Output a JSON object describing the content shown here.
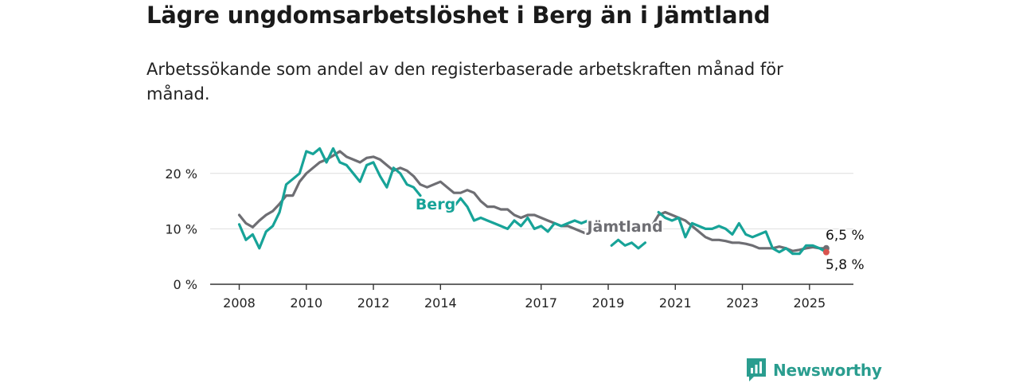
{
  "header": {
    "title": "Lägre ungdomsarbetslöshet i Berg än i Jämtland",
    "subtitle": "Arbetssökande som andel av den registerbaserade arbetskraften månad för månad."
  },
  "brand": {
    "name": "Newsworthy",
    "icon": "newsworthy-logo-icon",
    "color": "#2a9d8f"
  },
  "chart_data": {
    "type": "line",
    "title": "Lägre ungdomsarbetslöshet i Berg än i Jämtland",
    "subtitle": "Arbetssökande som andel av den registerbaserade arbetskraften månad för månad.",
    "xlim": [
      2008,
      2025.55
    ],
    "ylim": [
      0,
      25
    ],
    "yticks": [
      0,
      10,
      20
    ],
    "ytick_labels": [
      "0 %",
      "10 %",
      "20 %"
    ],
    "xticks": [
      2008,
      2010,
      2012,
      2014,
      2017,
      2019,
      2021,
      2023,
      2025
    ],
    "xtick_labels": [
      "2008",
      "2010",
      "2012",
      "2014",
      "2017",
      "2019",
      "2021",
      "2023",
      "2025"
    ],
    "grid": true,
    "series": [
      {
        "name": "Jämtland",
        "color": "#6e6e73",
        "label_x": 2019.5,
        "label_y": 9.5,
        "end_label": "6,5 %",
        "points": [
          [
            2008.0,
            12.5
          ],
          [
            2008.2,
            11.0
          ],
          [
            2008.4,
            10.3
          ],
          [
            2008.6,
            11.5
          ],
          [
            2008.8,
            12.5
          ],
          [
            2009.0,
            13.2
          ],
          [
            2009.2,
            14.5
          ],
          [
            2009.4,
            16.0
          ],
          [
            2009.6,
            16.0
          ],
          [
            2009.8,
            18.5
          ],
          [
            2010.0,
            20.0
          ],
          [
            2010.2,
            21.0
          ],
          [
            2010.4,
            22.0
          ],
          [
            2010.6,
            22.5
          ],
          [
            2010.8,
            23.2
          ],
          [
            2011.0,
            24.0
          ],
          [
            2011.2,
            23.0
          ],
          [
            2011.4,
            22.5
          ],
          [
            2011.6,
            22.0
          ],
          [
            2011.8,
            22.8
          ],
          [
            2012.0,
            23.0
          ],
          [
            2012.2,
            22.5
          ],
          [
            2012.4,
            21.5
          ],
          [
            2012.6,
            20.5
          ],
          [
            2012.8,
            21.0
          ],
          [
            2013.0,
            20.5
          ],
          [
            2013.2,
            19.5
          ],
          [
            2013.4,
            18.0
          ],
          [
            2013.6,
            17.5
          ],
          [
            2013.8,
            18.0
          ],
          [
            2014.0,
            18.5
          ],
          [
            2014.2,
            17.5
          ],
          [
            2014.4,
            16.5
          ],
          [
            2014.6,
            16.5
          ],
          [
            2014.8,
            17.0
          ],
          [
            2015.0,
            16.5
          ],
          [
            2015.2,
            15.0
          ],
          [
            2015.4,
            14.0
          ],
          [
            2015.6,
            14.0
          ],
          [
            2015.8,
            13.5
          ],
          [
            2016.0,
            13.5
          ],
          [
            2016.2,
            12.5
          ],
          [
            2016.4,
            12.0
          ],
          [
            2016.6,
            12.5
          ],
          [
            2016.8,
            12.5
          ],
          [
            2017.0,
            12.0
          ],
          [
            2017.2,
            11.5
          ],
          [
            2017.4,
            11.0
          ],
          [
            2017.6,
            10.5
          ],
          [
            2017.8,
            10.5
          ],
          [
            2018.0,
            10.0
          ],
          [
            2018.2,
            9.5
          ],
          [
            2018.4,
            9.0
          ],
          [
            2020.3,
            10.5
          ],
          [
            2020.5,
            12.5
          ],
          [
            2020.7,
            13.0
          ],
          [
            2020.9,
            12.5
          ],
          [
            2021.1,
            12.0
          ],
          [
            2021.3,
            11.5
          ],
          [
            2021.5,
            10.5
          ],
          [
            2021.7,
            9.5
          ],
          [
            2021.9,
            8.5
          ],
          [
            2022.1,
            8.0
          ],
          [
            2022.3,
            8.0
          ],
          [
            2022.5,
            7.8
          ],
          [
            2022.7,
            7.5
          ],
          [
            2022.9,
            7.5
          ],
          [
            2023.1,
            7.3
          ],
          [
            2023.3,
            7.0
          ],
          [
            2023.5,
            6.5
          ],
          [
            2023.7,
            6.5
          ],
          [
            2023.9,
            6.5
          ],
          [
            2024.1,
            6.8
          ],
          [
            2024.3,
            6.5
          ],
          [
            2024.5,
            6.0
          ],
          [
            2024.7,
            6.2
          ],
          [
            2024.9,
            6.5
          ],
          [
            2025.1,
            6.7
          ],
          [
            2025.3,
            6.5
          ],
          [
            2025.5,
            6.5
          ]
        ]
      },
      {
        "name": "Berg",
        "color": "#17a398",
        "label_x": 2013.85,
        "label_y": 13.5,
        "end_label": "5,8 %",
        "points": [
          [
            2008.0,
            10.8
          ],
          [
            2008.2,
            8.0
          ],
          [
            2008.4,
            9.0
          ],
          [
            2008.6,
            6.5
          ],
          [
            2008.8,
            9.5
          ],
          [
            2009.0,
            10.5
          ],
          [
            2009.2,
            13.0
          ],
          [
            2009.4,
            18.0
          ],
          [
            2009.6,
            19.0
          ],
          [
            2009.8,
            20.0
          ],
          [
            2010.0,
            24.0
          ],
          [
            2010.2,
            23.5
          ],
          [
            2010.4,
            24.5
          ],
          [
            2010.6,
            22.0
          ],
          [
            2010.8,
            24.5
          ],
          [
            2011.0,
            22.0
          ],
          [
            2011.2,
            21.5
          ],
          [
            2011.4,
            20.0
          ],
          [
            2011.6,
            18.5
          ],
          [
            2011.8,
            21.5
          ],
          [
            2012.0,
            22.0
          ],
          [
            2012.2,
            19.5
          ],
          [
            2012.4,
            17.5
          ],
          [
            2012.6,
            21.0
          ],
          [
            2012.8,
            20.0
          ],
          [
            2013.0,
            18.0
          ],
          [
            2013.2,
            17.5
          ],
          [
            2013.4,
            16.0
          ],
          [
            2014.4,
            14.0
          ],
          [
            2014.6,
            15.5
          ],
          [
            2014.8,
            14.0
          ],
          [
            2015.0,
            11.5
          ],
          [
            2015.2,
            12.0
          ],
          [
            2015.4,
            11.5
          ],
          [
            2015.6,
            11.0
          ],
          [
            2015.8,
            10.5
          ],
          [
            2016.0,
            10.0
          ],
          [
            2016.2,
            11.5
          ],
          [
            2016.4,
            10.5
          ],
          [
            2016.6,
            12.0
          ],
          [
            2016.8,
            10.0
          ],
          [
            2017.0,
            10.5
          ],
          [
            2017.2,
            9.5
          ],
          [
            2017.4,
            11.0
          ],
          [
            2017.6,
            10.5
          ],
          [
            2017.8,
            11.0
          ],
          [
            2018.0,
            11.5
          ],
          [
            2018.2,
            11.0
          ],
          [
            2018.4,
            11.5
          ],
          [
            2019.1,
            7.0
          ],
          [
            2019.3,
            8.0
          ],
          [
            2019.5,
            7.0
          ],
          [
            2019.7,
            7.5
          ],
          [
            2019.9,
            6.5
          ],
          [
            2020.1,
            7.5
          ],
          [
            2020.5,
            13.0
          ],
          [
            2020.7,
            12.0
          ],
          [
            2020.9,
            11.5
          ],
          [
            2021.1,
            12.0
          ],
          [
            2021.3,
            8.5
          ],
          [
            2021.5,
            11.0
          ],
          [
            2021.7,
            10.5
          ],
          [
            2021.9,
            10.0
          ],
          [
            2022.1,
            10.0
          ],
          [
            2022.3,
            10.5
          ],
          [
            2022.5,
            10.0
          ],
          [
            2022.7,
            9.0
          ],
          [
            2022.9,
            11.0
          ],
          [
            2023.1,
            9.0
          ],
          [
            2023.3,
            8.5
          ],
          [
            2023.5,
            9.0
          ],
          [
            2023.7,
            9.5
          ],
          [
            2023.9,
            6.5
          ],
          [
            2024.1,
            5.8
          ],
          [
            2024.3,
            6.5
          ],
          [
            2024.5,
            5.5
          ],
          [
            2024.7,
            5.5
          ],
          [
            2024.9,
            7.0
          ],
          [
            2025.1,
            7.0
          ],
          [
            2025.3,
            6.5
          ],
          [
            2025.5,
            5.8
          ]
        ]
      }
    ]
  }
}
